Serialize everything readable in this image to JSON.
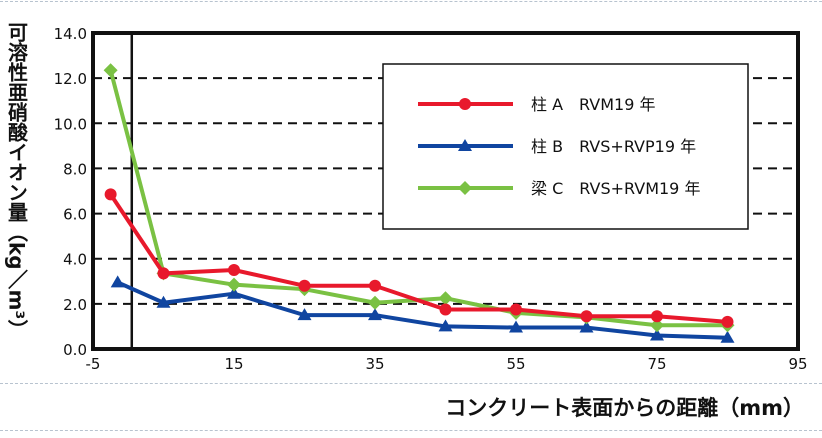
{
  "chart_data": {
    "type": "line",
    "title": "",
    "xlabel": "コンクリート表面からの距離（mm）",
    "ylabel": "可溶性亜硝酸イオン量（kg／m³）",
    "xlim": [
      -5,
      95
    ],
    "ylim": [
      0,
      14
    ],
    "x_ticks": [
      "-5",
      "15",
      "35",
      "55",
      "75",
      "95"
    ],
    "y_ticks": [
      "0.0",
      "2.0",
      "4.0",
      "6.0",
      "8.0",
      "10.0",
      "12.0",
      "14.0"
    ],
    "grid": "horizontal dashed",
    "legend_position": "top-right",
    "reference_line_x": 0.5,
    "series": [
      {
        "name": "柱 A　RVM19 年",
        "color": "#e8192c",
        "marker": "circle",
        "x": [
          -2.5,
          5,
          15,
          25,
          35,
          45,
          55,
          65,
          75,
          85
        ],
        "y": [
          6.85,
          3.35,
          3.5,
          2.8,
          2.8,
          1.75,
          1.75,
          1.45,
          1.45,
          1.2
        ]
      },
      {
        "name": "柱 B　RVS+RVP19 年",
        "color": "#1045a0",
        "marker": "triangle",
        "x": [
          -1.5,
          5,
          15,
          25,
          35,
          45,
          55,
          65,
          75,
          85
        ],
        "y": [
          2.95,
          2.05,
          2.45,
          1.5,
          1.5,
          1.0,
          0.95,
          0.95,
          0.6,
          0.5
        ]
      },
      {
        "name": "梁 C　RVS+RVM19 年",
        "color": "#7ac143",
        "marker": "diamond",
        "x": [
          -2.5,
          5,
          15,
          25,
          35,
          45,
          55,
          65,
          75,
          85
        ],
        "y": [
          12.35,
          3.35,
          2.85,
          2.65,
          2.05,
          2.25,
          1.6,
          1.4,
          1.05,
          1.05
        ]
      }
    ]
  }
}
